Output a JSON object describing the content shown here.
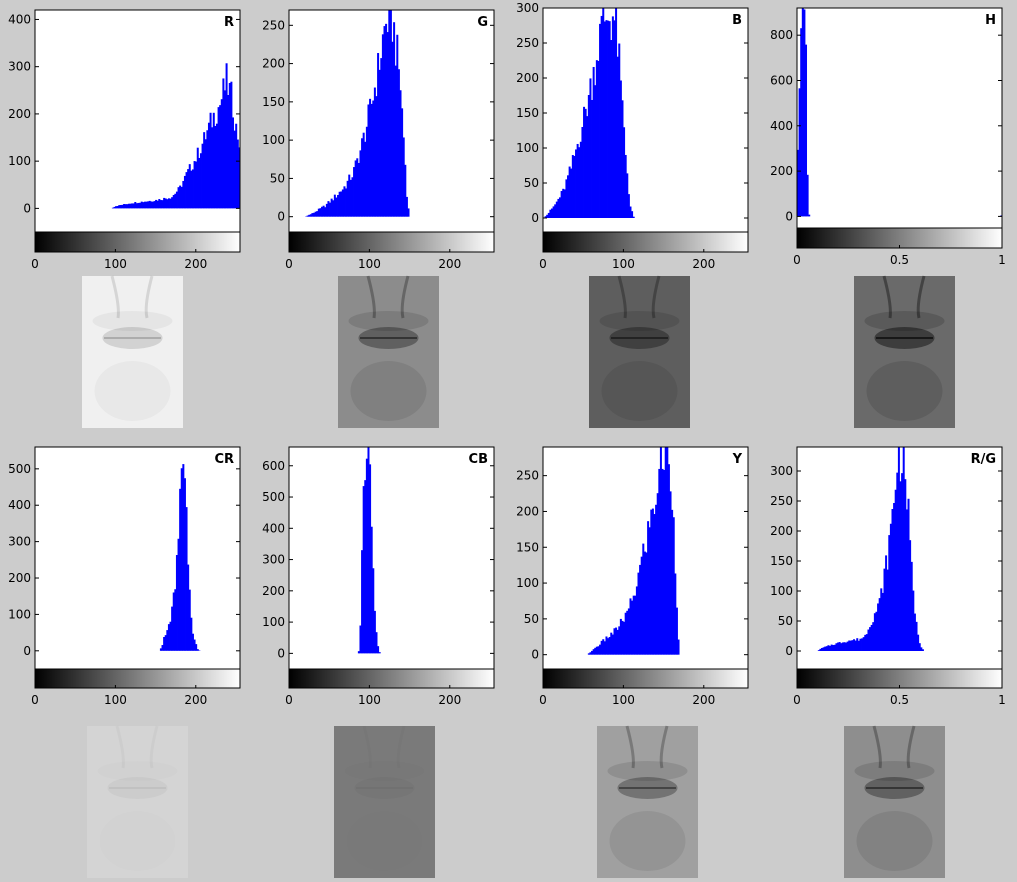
{
  "colors": {
    "bar": "#0000ff",
    "figure_background": "#cccccc",
    "axes_background": "#ffffff"
  },
  "chart_data": [
    {
      "type": "bar",
      "title": "R",
      "xlim": [
        0,
        255
      ],
      "ylim": [
        -50,
        420
      ],
      "xticks": [
        0,
        100,
        200
      ],
      "yticks": [
        0,
        100,
        200,
        300,
        400
      ],
      "colorbar": "black-to-white",
      "histogram_envelope": [
        [
          0,
          0
        ],
        [
          95,
          0
        ],
        [
          100,
          5
        ],
        [
          120,
          12
        ],
        [
          150,
          18
        ],
        [
          170,
          25
        ],
        [
          180,
          45
        ],
        [
          190,
          80
        ],
        [
          200,
          110
        ],
        [
          210,
          150
        ],
        [
          220,
          195
        ],
        [
          230,
          230
        ],
        [
          238,
          280
        ],
        [
          245,
          240
        ],
        [
          250,
          175
        ],
        [
          255,
          140
        ]
      ],
      "image": {
        "tone": "light",
        "lip_darkness": 0.18,
        "bg": "#f0f0f0"
      }
    },
    {
      "type": "bar",
      "title": "G",
      "xlim": [
        0,
        255
      ],
      "ylim": [
        -20,
        270
      ],
      "xticks": [
        0,
        100,
        200
      ],
      "yticks": [
        0,
        50,
        100,
        150,
        200,
        250
      ],
      "colorbar": "black-to-white",
      "histogram_envelope": [
        [
          0,
          0
        ],
        [
          20,
          0
        ],
        [
          30,
          5
        ],
        [
          45,
          15
        ],
        [
          60,
          30
        ],
        [
          70,
          42
        ],
        [
          80,
          60
        ],
        [
          90,
          95
        ],
        [
          100,
          140
        ],
        [
          110,
          195
        ],
        [
          118,
          250
        ],
        [
          122,
          268
        ],
        [
          128,
          270
        ],
        [
          133,
          230
        ],
        [
          138,
          185
        ],
        [
          143,
          100
        ],
        [
          147,
          20
        ],
        [
          150,
          0
        ],
        [
          255,
          0
        ]
      ],
      "image": {
        "tone": "mid",
        "lip_darkness": 0.45,
        "bg": "#8c8c8c"
      }
    },
    {
      "type": "bar",
      "title": "B",
      "xlim": [
        0,
        255
      ],
      "ylim": [
        -20,
        300
      ],
      "xticks": [
        0,
        100,
        200
      ],
      "yticks": [
        0,
        50,
        100,
        150,
        200,
        250,
        300
      ],
      "colorbar": "black-to-white",
      "histogram_envelope": [
        [
          0,
          0
        ],
        [
          5,
          5
        ],
        [
          15,
          20
        ],
        [
          25,
          40
        ],
        [
          35,
          75
        ],
        [
          45,
          120
        ],
        [
          55,
          170
        ],
        [
          65,
          230
        ],
        [
          72,
          280
        ],
        [
          78,
          300
        ],
        [
          88,
          300
        ],
        [
          92,
          270
        ],
        [
          97,
          190
        ],
        [
          103,
          90
        ],
        [
          108,
          20
        ],
        [
          113,
          0
        ],
        [
          255,
          0
        ]
      ],
      "image": {
        "tone": "dark",
        "lip_darkness": 0.45,
        "bg": "#5e5e5e"
      }
    },
    {
      "type": "bar",
      "title": "H",
      "xlim": [
        0,
        1
      ],
      "ylim": [
        -60,
        920
      ],
      "xticks": [
        0,
        0.5,
        1
      ],
      "yticks": [
        0,
        200,
        400,
        600,
        800
      ],
      "colorbar": "black-to-white",
      "histogram_envelope": [
        [
          0,
          250
        ],
        [
          0.005,
          350
        ],
        [
          0.01,
          500
        ],
        [
          0.017,
          920
        ],
        [
          0.04,
          920
        ],
        [
          0.05,
          200
        ],
        [
          0.058,
          10
        ],
        [
          0.065,
          0
        ],
        [
          0.995,
          0
        ],
        [
          1,
          20
        ]
      ],
      "image": {
        "tone": "hue",
        "lip_darkness": 0.6,
        "bg": "#6a6a6a"
      }
    },
    {
      "type": "bar",
      "title": "CR",
      "xlim": [
        0,
        255
      ],
      "ylim": [
        -50,
        560
      ],
      "xticks": [
        0,
        100,
        200
      ],
      "yticks": [
        0,
        100,
        200,
        300,
        400,
        500
      ],
      "colorbar": "black-to-white",
      "histogram_envelope": [
        [
          0,
          0
        ],
        [
          155,
          0
        ],
        [
          158,
          15
        ],
        [
          162,
          50
        ],
        [
          167,
          80
        ],
        [
          170,
          110
        ],
        [
          175,
          200
        ],
        [
          180,
          400
        ],
        [
          183,
          560
        ],
        [
          187,
          560
        ],
        [
          190,
          300
        ],
        [
          193,
          120
        ],
        [
          197,
          40
        ],
        [
          202,
          5
        ],
        [
          205,
          0
        ],
        [
          255,
          0
        ]
      ],
      "image": {
        "tone": "verylight",
        "lip_darkness": 0.05,
        "bg": "#d4d4d4"
      }
    },
    {
      "type": "bar",
      "title": "CB",
      "xlim": [
        0,
        255
      ],
      "ylim": [
        -50,
        660
      ],
      "xticks": [
        0,
        100,
        200
      ],
      "yticks": [
        0,
        100,
        200,
        300,
        400,
        500,
        600
      ],
      "colorbar": "black-to-white",
      "histogram_envelope": [
        [
          0,
          0
        ],
        [
          85,
          0
        ],
        [
          87,
          10
        ],
        [
          89,
          120
        ],
        [
          91,
          350
        ],
        [
          94,
          660
        ],
        [
          99,
          660
        ],
        [
          102,
          500
        ],
        [
          104,
          300
        ],
        [
          107,
          120
        ],
        [
          110,
          30
        ],
        [
          113,
          0
        ],
        [
          255,
          0
        ]
      ],
      "image": {
        "tone": "flat",
        "lip_darkness": 0.04,
        "bg": "#7a7a7a"
      }
    },
    {
      "type": "bar",
      "title": "Y",
      "xlim": [
        0,
        255
      ],
      "ylim": [
        -20,
        290
      ],
      "xticks": [
        0,
        100,
        200
      ],
      "yticks": [
        0,
        50,
        100,
        150,
        200,
        250
      ],
      "colorbar": "black-to-white",
      "histogram_envelope": [
        [
          0,
          0
        ],
        [
          55,
          0
        ],
        [
          60,
          5
        ],
        [
          75,
          20
        ],
        [
          90,
          35
        ],
        [
          105,
          60
        ],
        [
          115,
          95
        ],
        [
          125,
          150
        ],
        [
          135,
          200
        ],
        [
          140,
          230
        ],
        [
          145,
          270
        ],
        [
          150,
          290
        ],
        [
          155,
          290
        ],
        [
          160,
          250
        ],
        [
          165,
          120
        ],
        [
          168,
          30
        ],
        [
          170,
          0
        ],
        [
          255,
          0
        ]
      ],
      "image": {
        "tone": "mid",
        "lip_darkness": 0.4,
        "bg": "#a0a0a0"
      }
    },
    {
      "type": "bar",
      "title": "R/G",
      "xlim": [
        0,
        1
      ],
      "ylim": [
        -30,
        340
      ],
      "xticks": [
        0,
        0.5,
        1
      ],
      "yticks": [
        0,
        50,
        100,
        150,
        200,
        250,
        300
      ],
      "colorbar": "black-to-white",
      "histogram_envelope": [
        [
          0,
          0
        ],
        [
          0.1,
          0
        ],
        [
          0.12,
          5
        ],
        [
          0.18,
          12
        ],
        [
          0.25,
          18
        ],
        [
          0.3,
          20
        ],
        [
          0.33,
          25
        ],
        [
          0.36,
          50
        ],
        [
          0.4,
          80
        ],
        [
          0.44,
          160
        ],
        [
          0.47,
          250
        ],
        [
          0.49,
          340
        ],
        [
          0.52,
          340
        ],
        [
          0.54,
          250
        ],
        [
          0.56,
          130
        ],
        [
          0.58,
          50
        ],
        [
          0.6,
          10
        ],
        [
          0.62,
          0
        ],
        [
          1,
          0
        ]
      ],
      "image": {
        "tone": "mid",
        "lip_darkness": 0.45,
        "bg": "#8e8e8e"
      }
    }
  ]
}
